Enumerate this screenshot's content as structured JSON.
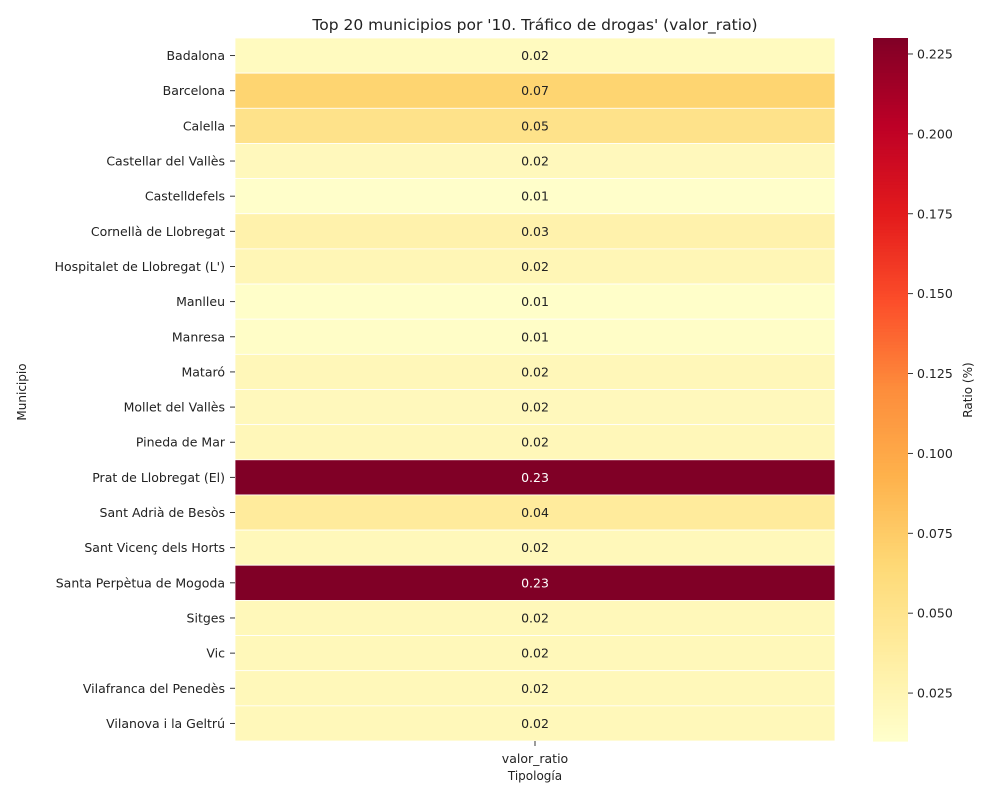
{
  "chart_data": {
    "type": "heatmap",
    "title": "Top 20 municipios por '10. Tráfico de drogas' (valor_ratio)",
    "xlabel": "Tipología",
    "ylabel": "Municipio",
    "x_categories": [
      "valor_ratio"
    ],
    "y_categories": [
      "Badalona",
      "Barcelona",
      "Calella",
      "Castellar del Vallès",
      "Castelldefels",
      "Cornellà de Llobregat",
      "Hospitalet de Llobregat (L')",
      "Manlleu",
      "Manresa",
      "Mataró",
      "Mollet del Vallès",
      "Pineda de Mar",
      "Prat de Llobregat (El)",
      "Sant Adrià de Besòs",
      "Sant Vicenç dels Horts",
      "Santa Perpètua de Mogoda",
      "Sitges",
      "Vic",
      "Vilafranca del Penedès",
      "Vilanova i la Geltrú"
    ],
    "values": [
      0.018,
      0.068,
      0.052,
      0.02,
      0.011,
      0.03,
      0.024,
      0.012,
      0.013,
      0.022,
      0.02,
      0.022,
      0.23,
      0.04,
      0.021,
      0.23,
      0.021,
      0.021,
      0.021,
      0.021
    ],
    "cell_labels": [
      "0.02",
      "0.07",
      "0.05",
      "0.02",
      "0.01",
      "0.03",
      "0.02",
      "0.01",
      "0.01",
      "0.02",
      "0.02",
      "0.02",
      "0.23",
      "0.04",
      "0.02",
      "0.23",
      "0.02",
      "0.02",
      "0.02",
      "0.02"
    ],
    "colorbar": {
      "label": "Ratio (%)",
      "range": [
        0.01,
        0.23
      ],
      "ticks": [
        0.025,
        0.05,
        0.075,
        0.1,
        0.125,
        0.15,
        0.175,
        0.2,
        0.225
      ],
      "tick_labels": [
        "0.025",
        "0.050",
        "0.075",
        "0.100",
        "0.125",
        "0.150",
        "0.175",
        "0.200",
        "0.225"
      ]
    },
    "colormap": "YlOrRd",
    "grid": false
  }
}
